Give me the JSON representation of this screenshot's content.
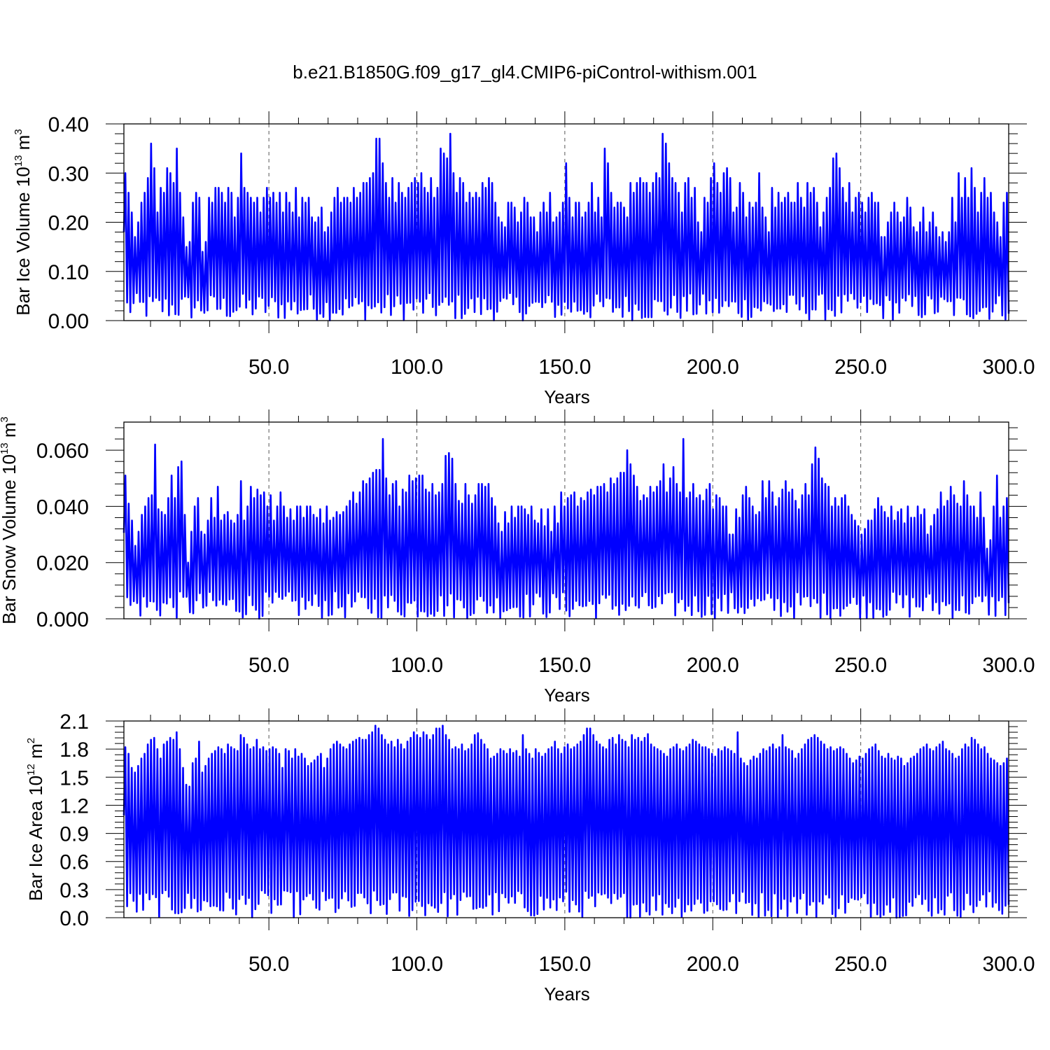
{
  "chart_data": {
    "title": "b.e21.B1850G.f09_g17_gl4.CMIP6-piControl-withism.001",
    "panels": [
      {
        "type": "line",
        "ylabel": {
          "pre": "Bar Ice Volume 10",
          "exp": "13",
          "mid": " m",
          "unit_exp": "3"
        },
        "xlabel": "Years",
        "xlim": [
          1,
          300
        ],
        "ylim": [
          0.0,
          0.4
        ],
        "xticks": [
          "50.0",
          "100.0",
          "150.0",
          "200.0",
          "250.0",
          "300.0"
        ],
        "xtick_values": [
          50,
          100,
          150,
          200,
          250,
          300
        ],
        "yticks": [
          "0.00",
          "0.10",
          "0.20",
          "0.30",
          "0.40"
        ],
        "ytick_values": [
          0.0,
          0.1,
          0.2,
          0.3,
          0.4
        ],
        "color": "#0000ff",
        "annual_max": [
          0.3,
          0.26,
          0.22,
          0.17,
          0.2,
          0.24,
          0.26,
          0.29,
          0.36,
          0.31,
          0.22,
          0.27,
          0.26,
          0.31,
          0.3,
          0.28,
          0.35,
          0.26,
          0.21,
          0.15,
          0.16,
          0.24,
          0.26,
          0.25,
          0.14,
          0.16,
          0.25,
          0.24,
          0.27,
          0.27,
          0.26,
          0.24,
          0.27,
          0.26,
          0.21,
          0.25,
          0.34,
          0.27,
          0.26,
          0.25,
          0.24,
          0.25,
          0.22,
          0.25,
          0.27,
          0.25,
          0.26,
          0.24,
          0.26,
          0.22,
          0.26,
          0.24,
          0.22,
          0.27,
          0.21,
          0.25,
          0.24,
          0.25,
          0.21,
          0.2,
          0.21,
          0.23,
          0.18,
          0.19,
          0.22,
          0.25,
          0.27,
          0.24,
          0.25,
          0.25,
          0.24,
          0.27,
          0.25,
          0.26,
          0.28,
          0.28,
          0.29,
          0.3,
          0.37,
          0.37,
          0.32,
          0.28,
          0.25,
          0.29,
          0.24,
          0.28,
          0.26,
          0.25,
          0.27,
          0.28,
          0.29,
          0.28,
          0.3,
          0.27,
          0.26,
          0.29,
          0.25,
          0.27,
          0.35,
          0.34,
          0.33,
          0.38,
          0.3,
          0.26,
          0.29,
          0.28,
          0.24,
          0.26,
          0.25,
          0.26,
          0.25,
          0.28,
          0.27,
          0.29,
          0.28,
          0.24,
          0.21,
          0.2,
          0.19,
          0.24,
          0.24,
          0.23,
          0.2,
          0.22,
          0.25,
          0.24,
          0.21,
          0.21,
          0.18,
          0.22,
          0.24,
          0.22,
          0.26,
          0.2,
          0.21,
          0.22,
          0.24,
          0.32,
          0.25,
          0.21,
          0.24,
          0.24,
          0.21,
          0.22,
          0.24,
          0.28,
          0.22,
          0.25,
          0.21,
          0.35,
          0.32,
          0.26,
          0.23,
          0.24,
          0.24,
          0.23,
          0.21,
          0.28,
          0.26,
          0.28,
          0.29,
          0.28,
          0.28,
          0.26,
          0.28,
          0.3,
          0.29,
          0.38,
          0.36,
          0.32,
          0.29,
          0.28,
          0.26,
          0.22,
          0.28,
          0.29,
          0.25,
          0.27,
          0.2,
          0.18,
          0.25,
          0.24,
          0.29,
          0.32,
          0.28,
          0.26,
          0.3,
          0.31,
          0.29,
          0.22,
          0.23,
          0.28,
          0.26,
          0.21,
          0.24,
          0.23,
          0.24,
          0.3,
          0.23,
          0.21,
          0.18,
          0.27,
          0.23,
          0.26,
          0.24,
          0.25,
          0.26,
          0.24,
          0.24,
          0.28,
          0.25,
          0.23,
          0.28,
          0.26,
          0.27,
          0.24,
          0.19,
          0.22,
          0.25,
          0.27,
          0.33,
          0.34,
          0.31,
          0.27,
          0.24,
          0.28,
          0.22,
          0.25,
          0.26,
          0.24,
          0.22,
          0.25,
          0.26,
          0.24,
          0.24,
          0.17,
          0.17,
          0.2,
          0.22,
          0.24,
          0.22,
          0.2,
          0.21,
          0.25,
          0.23,
          0.19,
          0.18,
          0.2,
          0.23,
          0.18,
          0.2,
          0.22,
          0.19,
          0.17,
          0.18,
          0.16,
          0.18,
          0.25,
          0.2,
          0.3,
          0.25,
          0.29,
          0.25,
          0.31,
          0.27,
          0.22,
          0.26,
          0.29,
          0.25,
          0.26,
          0.22,
          0.2,
          0.17,
          0.24,
          0.26
        ]
      },
      {
        "type": "line",
        "ylabel": {
          "pre": "Bar Snow Volume 10",
          "exp": "13",
          "mid": " m",
          "unit_exp": "3"
        },
        "xlabel": "Years",
        "xlim": [
          1,
          300
        ],
        "ylim": [
          0.0,
          0.07
        ],
        "xticks": [
          "50.0",
          "100.0",
          "150.0",
          "200.0",
          "250.0",
          "300.0"
        ],
        "xtick_values": [
          50,
          100,
          150,
          200,
          250,
          300
        ],
        "yticks": [
          "0.000",
          "0.020",
          "0.040",
          "0.060"
        ],
        "ytick_values": [
          0.0,
          0.02,
          0.04,
          0.06
        ],
        "color": "#0000ff",
        "annual_max": [
          0.051,
          0.041,
          0.035,
          0.026,
          0.031,
          0.037,
          0.04,
          0.043,
          0.044,
          0.062,
          0.039,
          0.038,
          0.037,
          0.043,
          0.051,
          0.043,
          0.054,
          0.056,
          0.037,
          0.02,
          0.031,
          0.04,
          0.043,
          0.031,
          0.03,
          0.035,
          0.043,
          0.036,
          0.047,
          0.035,
          0.037,
          0.038,
          0.035,
          0.034,
          0.037,
          0.049,
          0.035,
          0.04,
          0.047,
          0.043,
          0.046,
          0.044,
          0.045,
          0.04,
          0.044,
          0.035,
          0.04,
          0.045,
          0.04,
          0.036,
          0.039,
          0.035,
          0.04,
          0.04,
          0.036,
          0.04,
          0.04,
          0.037,
          0.036,
          0.039,
          0.034,
          0.04,
          0.035,
          0.036,
          0.038,
          0.037,
          0.038,
          0.04,
          0.042,
          0.045,
          0.041,
          0.045,
          0.049,
          0.048,
          0.05,
          0.052,
          0.053,
          0.053,
          0.064,
          0.05,
          0.044,
          0.048,
          0.049,
          0.04,
          0.046,
          0.045,
          0.051,
          0.049,
          0.05,
          0.051,
          0.051,
          0.046,
          0.045,
          0.048,
          0.044,
          0.045,
          0.048,
          0.058,
          0.059,
          0.057,
          0.048,
          0.042,
          0.041,
          0.048,
          0.044,
          0.041,
          0.044,
          0.048,
          0.048,
          0.047,
          0.048,
          0.043,
          0.04,
          0.034,
          0.031,
          0.038,
          0.034,
          0.04,
          0.036,
          0.04,
          0.04,
          0.039,
          0.037,
          0.04,
          0.035,
          0.034,
          0.039,
          0.033,
          0.039,
          0.031,
          0.04,
          0.034,
          0.045,
          0.04,
          0.043,
          0.044,
          0.045,
          0.04,
          0.043,
          0.042,
          0.045,
          0.046,
          0.044,
          0.047,
          0.047,
          0.048,
          0.045,
          0.05,
          0.048,
          0.05,
          0.052,
          0.052,
          0.06,
          0.055,
          0.051,
          0.047,
          0.042,
          0.044,
          0.043,
          0.047,
          0.045,
          0.047,
          0.049,
          0.055,
          0.045,
          0.05,
          0.054,
          0.048,
          0.045,
          0.064,
          0.043,
          0.045,
          0.048,
          0.043,
          0.044,
          0.042,
          0.046,
          0.048,
          0.039,
          0.044,
          0.043,
          0.04,
          0.04,
          0.03,
          0.03,
          0.039,
          0.036,
          0.044,
          0.047,
          0.043,
          0.04,
          0.037,
          0.038,
          0.049,
          0.043,
          0.049,
          0.045,
          0.04,
          0.043,
          0.046,
          0.049,
          0.045,
          0.046,
          0.042,
          0.039,
          0.044,
          0.048,
          0.044,
          0.055,
          0.061,
          0.057,
          0.05,
          0.048,
          0.047,
          0.04,
          0.043,
          0.04,
          0.043,
          0.044,
          0.04,
          0.037,
          0.035,
          0.033,
          0.03,
          0.032,
          0.035,
          0.035,
          0.039,
          0.043,
          0.04,
          0.038,
          0.036,
          0.04,
          0.035,
          0.038,
          0.039,
          0.034,
          0.04,
          0.036,
          0.036,
          0.04,
          0.037,
          0.039,
          0.03,
          0.033,
          0.037,
          0.039,
          0.045,
          0.04,
          0.042,
          0.047,
          0.044,
          0.041,
          0.04,
          0.049,
          0.044,
          0.04,
          0.04,
          0.036,
          0.045,
          0.036,
          0.025,
          0.028,
          0.04,
          0.051,
          0.036,
          0.04,
          0.043
        ]
      },
      {
        "type": "line",
        "ylabel": {
          "pre": "Bar Ice Area 10",
          "exp": "12",
          "mid": " m",
          "unit_exp": "2"
        },
        "xlabel": "Years",
        "xlim": [
          1,
          300
        ],
        "ylim": [
          0.0,
          2.1
        ],
        "xticks": [
          "50.0",
          "100.0",
          "150.0",
          "200.0",
          "250.0",
          "300.0"
        ],
        "xtick_values": [
          50,
          100,
          150,
          200,
          250,
          300
        ],
        "yticks": [
          "0.0",
          "0.3",
          "0.6",
          "0.9",
          "1.2",
          "1.5",
          "1.8",
          "2.1"
        ],
        "ytick_values": [
          0.0,
          0.3,
          0.6,
          0.9,
          1.2,
          1.5,
          1.8,
          2.1
        ],
        "color": "#0000ff",
        "annual_max": [
          1.82,
          1.75,
          1.6,
          1.55,
          1.62,
          1.7,
          1.75,
          1.85,
          1.9,
          1.92,
          1.8,
          1.7,
          1.85,
          1.88,
          1.92,
          1.9,
          1.98,
          1.8,
          1.6,
          1.42,
          1.4,
          1.65,
          1.7,
          1.88,
          1.55,
          1.62,
          1.7,
          1.75,
          1.78,
          1.82,
          1.8,
          1.75,
          1.85,
          1.82,
          1.8,
          1.78,
          1.95,
          1.92,
          1.85,
          1.8,
          1.82,
          1.9,
          1.8,
          1.82,
          1.78,
          1.8,
          1.82,
          1.8,
          1.75,
          1.6,
          1.8,
          1.78,
          1.7,
          1.8,
          1.72,
          1.75,
          1.7,
          1.62,
          1.65,
          1.68,
          1.72,
          1.75,
          1.6,
          1.7,
          1.8,
          1.85,
          1.88,
          1.85,
          1.82,
          1.8,
          1.85,
          1.88,
          1.9,
          1.92,
          1.9,
          1.9,
          1.95,
          1.98,
          2.05,
          2.02,
          1.95,
          1.9,
          1.85,
          1.88,
          1.82,
          1.9,
          1.85,
          1.8,
          1.88,
          1.92,
          1.98,
          1.95,
          1.92,
          1.98,
          1.95,
          1.9,
          1.95,
          2.02,
          2.02,
          2.05,
          1.95,
          1.9,
          1.8,
          1.82,
          1.8,
          1.85,
          1.78,
          1.8,
          1.85,
          1.95,
          1.97,
          1.9,
          1.85,
          1.8,
          1.7,
          1.72,
          1.75,
          1.8,
          1.78,
          1.75,
          1.8,
          1.76,
          1.78,
          1.72,
          1.95,
          1.8,
          1.75,
          1.7,
          1.8,
          1.76,
          1.72,
          1.75,
          1.8,
          1.82,
          1.88,
          1.8,
          1.75,
          1.82,
          1.85,
          1.8,
          1.82,
          1.85,
          1.88,
          1.95,
          2.02,
          2.02,
          1.95,
          1.88,
          1.85,
          1.82,
          1.8,
          1.9,
          1.92,
          1.85,
          1.95,
          1.9,
          1.88,
          1.82,
          1.95,
          1.9,
          1.92,
          1.88,
          1.92,
          1.96,
          1.85,
          1.82,
          1.8,
          1.78,
          1.75,
          1.72,
          1.8,
          1.82,
          1.85,
          1.8,
          1.78,
          1.82,
          1.85,
          1.9,
          1.88,
          1.85,
          1.82,
          1.82,
          1.8,
          1.75,
          1.72,
          1.8,
          1.78,
          1.82,
          1.8,
          1.78,
          1.75,
          1.98,
          1.7,
          1.65,
          1.62,
          1.68,
          1.72,
          1.7,
          1.75,
          1.8,
          1.78,
          1.82,
          1.85,
          1.8,
          1.82,
          1.95,
          1.82,
          1.8,
          1.78,
          1.7,
          1.75,
          1.8,
          1.85,
          1.9,
          1.92,
          1.95,
          1.92,
          1.88,
          1.85,
          1.8,
          1.82,
          1.78,
          1.8,
          1.82,
          1.8,
          1.75,
          1.7,
          1.65,
          1.68,
          1.72,
          1.7,
          1.75,
          1.8,
          1.82,
          1.85,
          1.78,
          1.72,
          1.7,
          1.75,
          1.7,
          1.68,
          1.72,
          1.7,
          1.62,
          1.65,
          1.7,
          1.72,
          1.75,
          1.8,
          1.82,
          1.85,
          1.8,
          1.78,
          1.82,
          1.85,
          1.88,
          1.8,
          1.78,
          1.75,
          1.7,
          1.72,
          1.8,
          1.85,
          1.82,
          1.92,
          1.9,
          1.85,
          1.8,
          1.82,
          1.75,
          1.7,
          1.68,
          1.65,
          1.62,
          1.65,
          1.7
        ]
      }
    ]
  }
}
